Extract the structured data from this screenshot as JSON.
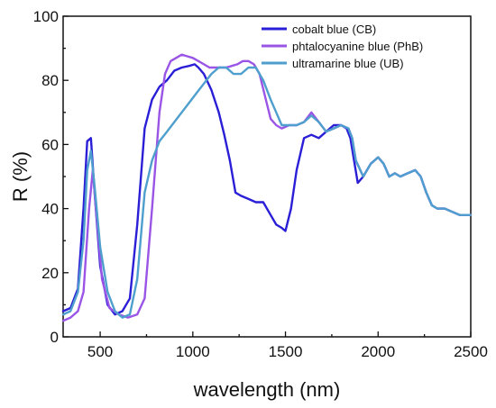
{
  "chart_data": {
    "type": "line",
    "xlabel": "wavelength (nm)",
    "ylabel": "R (%)",
    "xlim": [
      300,
      2500
    ],
    "ylim": [
      0,
      100
    ],
    "xticks": [
      500,
      1000,
      1500,
      2000,
      2500
    ],
    "yticks": [
      0,
      20,
      40,
      60,
      80,
      100
    ],
    "grid": false,
    "legend_position": "top-right",
    "series": [
      {
        "name": "cobalt blue (CB)",
        "color": "#2a1fd6",
        "x": [
          300,
          340,
          380,
          410,
          430,
          450,
          470,
          500,
          540,
          580,
          620,
          660,
          700,
          740,
          780,
          820,
          860,
          900,
          940,
          980,
          1010,
          1030,
          1060,
          1100,
          1140,
          1170,
          1200,
          1230,
          1260,
          1300,
          1340,
          1380,
          1420,
          1450,
          1480,
          1500,
          1530,
          1560,
          1600,
          1640,
          1680,
          1720,
          1760,
          1800,
          1830,
          1850,
          1870,
          1890,
          1920,
          1960,
          2000,
          2030,
          2060,
          2090,
          2120,
          2160,
          2200,
          2230,
          2260,
          2290,
          2320,
          2360,
          2400,
          2440,
          2480,
          2500
        ],
        "y": [
          8,
          9,
          15,
          40,
          61,
          62,
          45,
          22,
          10,
          7,
          8,
          12,
          35,
          65,
          74,
          78,
          80,
          83,
          84,
          84.5,
          85,
          84,
          82,
          77,
          70,
          63,
          55,
          45,
          44,
          43,
          42,
          42,
          38,
          35,
          34,
          33,
          40,
          52,
          62,
          63,
          62,
          64,
          66,
          66,
          65,
          62,
          55,
          48,
          50,
          54,
          56,
          54,
          50,
          51,
          50,
          51,
          52,
          50,
          45,
          41,
          40,
          40,
          39,
          38,
          38,
          38
        ]
      },
      {
        "name": "phtalocyanine blue (PhB)",
        "color": "#9a55e6",
        "x": [
          300,
          340,
          380,
          410,
          440,
          460,
          480,
          510,
          550,
          600,
          650,
          700,
          740,
          780,
          820,
          850,
          880,
          910,
          940,
          970,
          1000,
          1030,
          1060,
          1090,
          1120,
          1150,
          1180,
          1210,
          1240,
          1270,
          1300,
          1330,
          1360,
          1390,
          1420,
          1450,
          1480,
          1520,
          1560,
          1600,
          1640,
          1680,
          1720,
          1760,
          1800,
          1840,
          1860,
          1880,
          1920,
          1960,
          2000,
          2030,
          2060,
          2090,
          2120,
          2160,
          2200,
          2230,
          2260,
          2290,
          2320,
          2360,
          2400,
          2440,
          2480,
          2500
        ],
        "y": [
          5,
          6,
          8,
          14,
          40,
          52,
          38,
          18,
          9,
          7,
          6,
          7,
          12,
          40,
          70,
          82,
          86,
          87,
          88,
          87.5,
          87,
          86,
          85,
          84,
          84,
          84,
          84,
          84.5,
          85,
          86,
          86,
          85,
          82,
          75,
          68,
          66,
          65,
          66,
          66,
          67,
          70,
          67,
          64,
          65,
          66,
          65,
          62,
          55,
          50,
          54,
          56,
          54,
          50,
          51,
          50,
          51,
          52,
          50,
          45,
          41,
          40,
          40,
          39,
          38,
          38,
          38
        ]
      },
      {
        "name": "ultramarine blue (UB)",
        "color": "#4e9fcd",
        "x": [
          300,
          340,
          380,
          410,
          430,
          450,
          470,
          500,
          540,
          580,
          620,
          660,
          700,
          740,
          780,
          820,
          860,
          900,
          940,
          980,
          1020,
          1060,
          1100,
          1140,
          1180,
          1220,
          1260,
          1300,
          1340,
          1380,
          1420,
          1450,
          1480,
          1520,
          1560,
          1600,
          1640,
          1680,
          1720,
          1760,
          1800,
          1840,
          1860,
          1880,
          1920,
          1960,
          2000,
          2030,
          2060,
          2090,
          2120,
          2160,
          2200,
          2230,
          2260,
          2290,
          2320,
          2360,
          2400,
          2440,
          2480,
          2500
        ],
        "y": [
          7,
          8,
          14,
          30,
          52,
          58,
          47,
          28,
          14,
          8,
          6,
          7,
          18,
          45,
          55,
          61,
          64,
          67,
          70,
          73,
          76,
          79,
          82,
          84,
          84,
          82,
          82,
          84,
          84,
          80,
          74,
          70,
          66,
          66,
          66,
          67,
          69,
          67,
          64,
          65,
          66,
          65,
          62,
          55,
          50,
          54,
          56,
          54,
          50,
          51,
          50,
          51,
          52,
          50,
          45,
          41,
          40,
          40,
          39,
          38,
          38,
          38
        ]
      }
    ]
  }
}
